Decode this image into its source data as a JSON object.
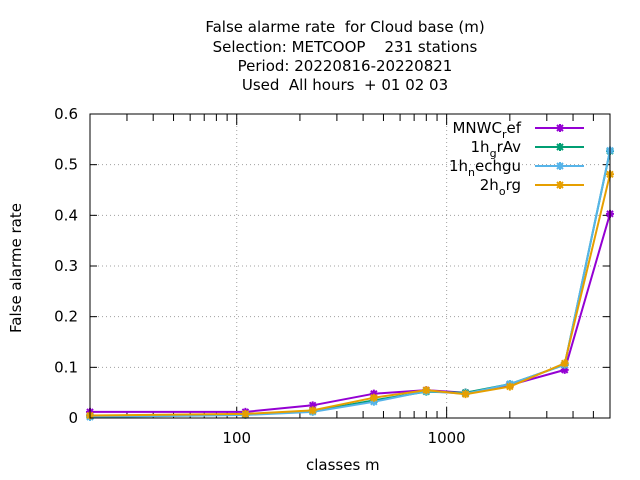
{
  "chart_data": {
    "type": "line",
    "title": [
      "False alarme rate  for Cloud base (m)",
      "Selection: METCOOP    231 stations",
      "Period: 20220816-20220821",
      "Used  All hours  + 01 02 03"
    ],
    "xlabel": "classes m",
    "ylabel": "False alarme rate",
    "xscale": "log",
    "xlim": [
      20,
      6000
    ],
    "ylim": [
      0,
      0.6
    ],
    "x_ticks": [
      100,
      1000
    ],
    "x_tick_labels": [
      "100",
      "1000"
    ],
    "y_ticks": [
      0,
      0.1,
      0.2,
      0.3,
      0.4,
      0.5,
      0.6
    ],
    "y_tick_labels": [
      "0",
      "0.1",
      "0.2",
      "0.3",
      "0.4",
      "0.5",
      "0.6"
    ],
    "grid": true,
    "legend_position": "top-right",
    "x": [
      20,
      110,
      230,
      450,
      800,
      1230,
      2000,
      3650,
      6000
    ],
    "series": [
      {
        "name": "MNWC",
        "name_sub": "r",
        "name_after": "ef",
        "color": "#9400d3",
        "values": [
          0.012,
          0.012,
          0.025,
          0.048,
          0.055,
          0.05,
          0.065,
          0.095,
          0.403
        ]
      },
      {
        "name": "1h",
        "name_sub": "g",
        "name_after": "rAv",
        "color": "#009e73",
        "values": [
          0.003,
          0.007,
          0.013,
          0.035,
          0.052,
          0.05,
          0.067,
          0.105,
          0.527
        ]
      },
      {
        "name": "1h",
        "name_sub": "n",
        "name_after": "echgu",
        "color": "#56b4e9",
        "values": [
          0.002,
          0.006,
          0.012,
          0.032,
          0.053,
          0.048,
          0.067,
          0.105,
          0.528
        ]
      },
      {
        "name": "2h",
        "name_sub": "o",
        "name_after": "rg",
        "color": "#e69f00",
        "values": [
          0.005,
          0.008,
          0.015,
          0.04,
          0.055,
          0.047,
          0.062,
          0.108,
          0.481
        ]
      }
    ]
  }
}
